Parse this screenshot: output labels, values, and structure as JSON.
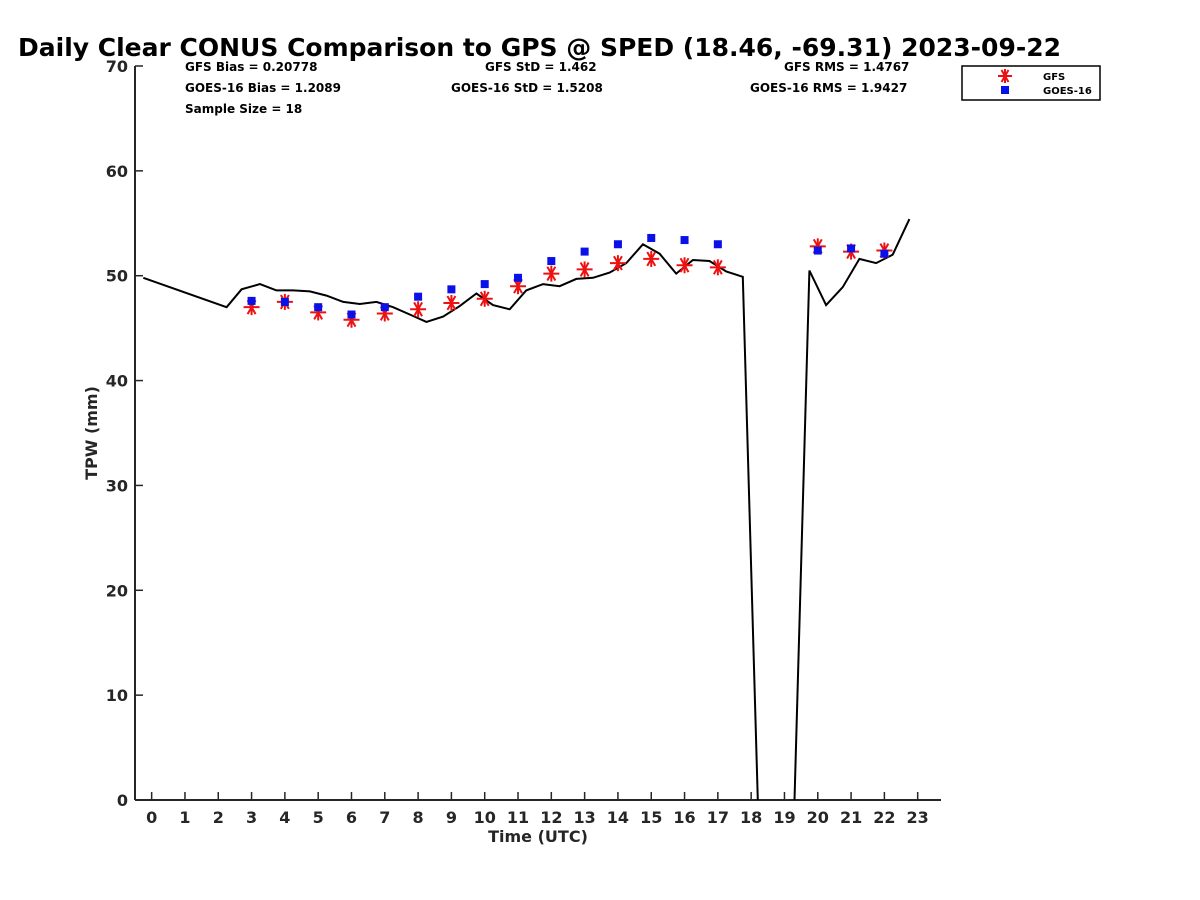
{
  "chart_data": {
    "type": "line",
    "title": "Daily Clear CONUS Comparison to GPS @ SPED (18.46, -69.31) 2023-09-22",
    "xlabel": "Time (UTC)",
    "ylabel": "TPW (mm)",
    "xlim": [
      -0.5,
      23.7
    ],
    "ylim": [
      0,
      70
    ],
    "x_ticks": [
      0,
      1,
      2,
      3,
      4,
      5,
      6,
      7,
      8,
      9,
      10,
      11,
      12,
      13,
      14,
      15,
      16,
      17,
      18,
      19,
      20,
      21,
      22,
      23
    ],
    "y_ticks": [
      0,
      10,
      20,
      30,
      40,
      50,
      60,
      70
    ],
    "stats": {
      "gfs_bias": "GFS Bias = 0.20778",
      "goes_bias": "GOES-16 Bias = 1.2089",
      "sample_size": "Sample Size = 18",
      "gfs_std": "GFS StD = 1.462",
      "goes_std": "GOES-16 StD = 1.5208",
      "gfs_rms": "GFS RMS = 1.4767",
      "goes_rms": "GOES-16 RMS = 1.9427"
    },
    "legend": {
      "placement": "top-right",
      "gfs": "GFS",
      "goes": "GOES-16"
    },
    "series": [
      {
        "name": "GPS",
        "kind": "line",
        "color": "#000000",
        "segments": [
          [
            [
              -0.25,
              49.8
            ],
            [
              2.25,
              47.0
            ],
            [
              2.7,
              48.7
            ],
            [
              3.25,
              49.2
            ],
            [
              3.75,
              48.6
            ],
            [
              4.25,
              48.6
            ],
            [
              4.75,
              48.5
            ],
            [
              5.25,
              48.1
            ],
            [
              5.75,
              47.5
            ],
            [
              6.25,
              47.3
            ],
            [
              6.75,
              47.5
            ],
            [
              7.25,
              47.0
            ],
            [
              7.75,
              46.3
            ],
            [
              8.25,
              45.6
            ],
            [
              8.75,
              46.1
            ],
            [
              9.25,
              47.1
            ],
            [
              9.75,
              48.3
            ],
            [
              10.25,
              47.2
            ],
            [
              10.75,
              46.8
            ],
            [
              11.25,
              48.6
            ],
            [
              11.75,
              49.2
            ],
            [
              12.25,
              49.0
            ],
            [
              12.75,
              49.7
            ],
            [
              13.25,
              49.8
            ],
            [
              13.75,
              50.3
            ],
            [
              14.25,
              51.2
            ],
            [
              14.75,
              53.0
            ],
            [
              15.25,
              52.1
            ],
            [
              15.75,
              50.2
            ],
            [
              16.25,
              51.5
            ],
            [
              16.75,
              51.4
            ],
            [
              17.25,
              50.4
            ],
            [
              17.75,
              49.9
            ],
            [
              18.2,
              0
            ]
          ],
          [
            [
              19.3,
              0
            ],
            [
              19.75,
              50.5
            ],
            [
              20.25,
              47.2
            ],
            [
              20.75,
              48.9
            ],
            [
              21.25,
              51.6
            ],
            [
              21.75,
              51.2
            ],
            [
              22.25,
              52.0
            ],
            [
              22.75,
              55.4
            ]
          ]
        ]
      },
      {
        "name": "GFS",
        "kind": "marker",
        "marker": "asterisk",
        "color": "#ee1111",
        "x": [
          3,
          4,
          5,
          6,
          7,
          8,
          9,
          10,
          11,
          12,
          13,
          14,
          15,
          16,
          17,
          20,
          21,
          22
        ],
        "y": [
          47.0,
          47.5,
          46.5,
          45.8,
          46.4,
          46.8,
          47.4,
          47.8,
          49.0,
          50.2,
          50.6,
          51.2,
          51.6,
          51.0,
          50.8,
          52.8,
          52.3,
          52.4
        ]
      },
      {
        "name": "GOES-16",
        "kind": "marker",
        "marker": "square",
        "color": "#0a10e8",
        "x": [
          3,
          4,
          5,
          6,
          7,
          8,
          9,
          10,
          11,
          12,
          13,
          14,
          15,
          16,
          17,
          20,
          21,
          22
        ],
        "y": [
          47.6,
          47.5,
          47.0,
          46.3,
          47.0,
          48.0,
          48.7,
          49.2,
          49.8,
          51.4,
          52.3,
          53.0,
          53.6,
          53.4,
          53.0,
          52.4,
          52.6,
          52.1
        ]
      }
    ]
  }
}
